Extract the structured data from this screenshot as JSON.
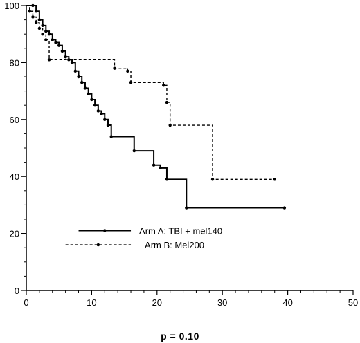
{
  "chart_data": {
    "type": "line",
    "xlim": [
      0,
      50
    ],
    "ylim": [
      0,
      100
    ],
    "x_ticks": [
      0,
      10,
      20,
      30,
      40,
      50
    ],
    "y_ticks": [
      0,
      20,
      40,
      60,
      80,
      100
    ],
    "x_minor_step": 2,
    "y_minor_step": 5,
    "grid": false,
    "legend_placement": "lower-left inside plot",
    "series": [
      {
        "name": "Arm A: TBI + mel140",
        "style": "solid",
        "color": "#000000",
        "x": [
          0,
          1.0,
          1.5,
          2.0,
          2.5,
          3.0,
          3.5,
          4.0,
          4.5,
          5.0,
          5.5,
          6.0,
          6.5,
          7.0,
          7.5,
          8.0,
          8.5,
          9.0,
          9.5,
          10.0,
          10.5,
          11.0,
          11.5,
          12.0,
          12.5,
          13.0,
          16.5,
          19.5,
          20.5,
          21.5,
          24.5,
          39.5
        ],
        "y": [
          100,
          100,
          98,
          95,
          93,
          91,
          90,
          88,
          87,
          86,
          84,
          82,
          81,
          80,
          77,
          75,
          73,
          71,
          69,
          67,
          65,
          63,
          62,
          60,
          58,
          54,
          49,
          44,
          43,
          39,
          29,
          29
        ]
      },
      {
        "name": "Arm B: Mel200",
        "style": "dashed",
        "color": "#000000",
        "x": [
          0,
          0.5,
          1.0,
          1.5,
          2.0,
          2.5,
          3.0,
          3.5,
          13.5,
          15.5,
          16.0,
          21.0,
          21.5,
          22.0,
          28.5,
          38.0
        ],
        "y": [
          100,
          98,
          96,
          94,
          92,
          90,
          88,
          81,
          78,
          77,
          73,
          72,
          66,
          58,
          39,
          39
        ]
      }
    ]
  },
  "annotation": {
    "p_value": "p  =  0.10"
  }
}
